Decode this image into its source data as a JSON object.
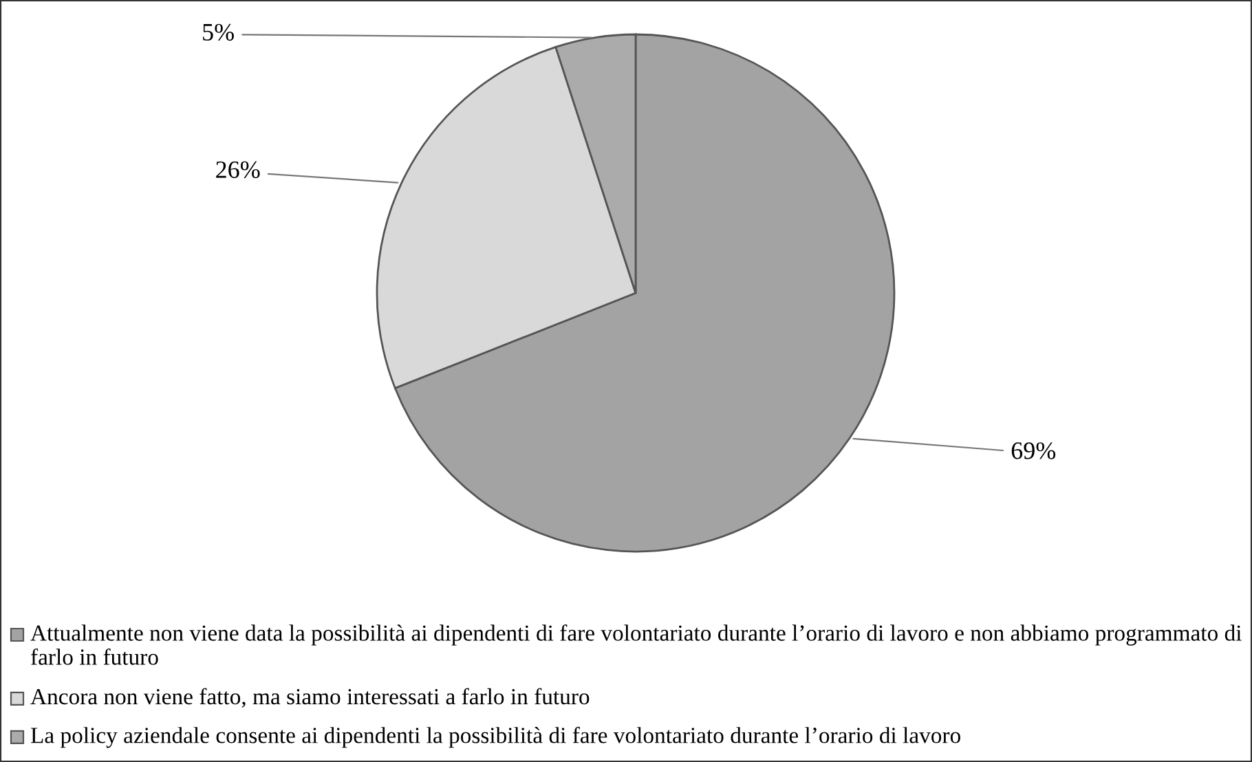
{
  "chart_data": {
    "type": "pie",
    "categories": [
      "Attualmente non viene data la possibilità ai dipendenti di fare volontariato durante l’orario di lavoro e non abbiamo programmato di farlo in futuro",
      "Ancora non viene fatto, ma siamo interessati a farlo in futuro",
      "La policy aziendale consente ai dipendenti la possibilità di fare volontariato durante l’orario di lavoro"
    ],
    "values": [
      69,
      26,
      5
    ],
    "colors": [
      "#a3a3a3",
      "#d9d9d9",
      "#ababab"
    ],
    "value_labels": [
      "69%",
      "26%",
      "5%"
    ],
    "legend": "bottom"
  }
}
